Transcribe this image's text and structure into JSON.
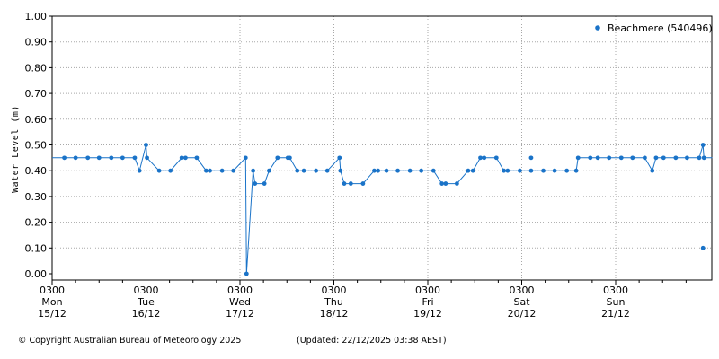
{
  "chart_data": {
    "type": "line",
    "title": "",
    "ylabel": "Water Level (m)",
    "xlabel": "",
    "ylim": [
      0,
      1.0
    ],
    "yticks": [
      "0.00",
      "0.10",
      "0.20",
      "0.30",
      "0.40",
      "0.50",
      "0.60",
      "0.70",
      "0.80",
      "0.90",
      "1.00"
    ],
    "xlim": [
      0,
      7.03
    ],
    "x_unit": "days since 0300 Mon 15/12",
    "xticks": [
      {
        "time": "0300",
        "day": "Mon",
        "date": "15/12"
      },
      {
        "time": "0300",
        "day": "Tue",
        "date": "16/12"
      },
      {
        "time": "0300",
        "day": "Wed",
        "date": "17/12"
      },
      {
        "time": "0300",
        "day": "Thu",
        "date": "18/12"
      },
      {
        "time": "0300",
        "day": "Fri",
        "date": "19/12"
      },
      {
        "time": "0300",
        "day": "Sat",
        "date": "20/12"
      },
      {
        "time": "0300",
        "day": "Sun",
        "date": "21/12"
      }
    ],
    "grid": true,
    "legend_position": "top-right",
    "series": [
      {
        "name": "Beachmere (540496)",
        "color": "#1a73c8",
        "points": [
          [
            0.0,
            0.45
          ],
          [
            0.13,
            0.45
          ],
          [
            0.25,
            0.45
          ],
          [
            0.38,
            0.45
          ],
          [
            0.5,
            0.45
          ],
          [
            0.63,
            0.45
          ],
          [
            0.75,
            0.45
          ],
          [
            0.88,
            0.45
          ],
          [
            0.93,
            0.4
          ],
          [
            1.0,
            0.5
          ],
          [
            1.01,
            0.45
          ],
          [
            1.14,
            0.4
          ],
          [
            1.26,
            0.4
          ],
          [
            1.38,
            0.45
          ],
          [
            1.42,
            0.45
          ],
          [
            1.54,
            0.45
          ],
          [
            1.64,
            0.4
          ],
          [
            1.68,
            0.4
          ],
          [
            1.81,
            0.4
          ],
          [
            1.93,
            0.4
          ],
          [
            2.06,
            0.45
          ],
          [
            2.07,
            0.0
          ],
          [
            2.14,
            0.4
          ],
          [
            2.16,
            0.35
          ],
          [
            2.26,
            0.35
          ],
          [
            2.31,
            0.4
          ],
          [
            2.4,
            0.45
          ],
          [
            2.51,
            0.45
          ],
          [
            2.53,
            0.45
          ],
          [
            2.61,
            0.4
          ],
          [
            2.68,
            0.4
          ],
          [
            2.81,
            0.4
          ],
          [
            2.93,
            0.4
          ],
          [
            3.06,
            0.45
          ],
          [
            3.07,
            0.4
          ],
          [
            3.11,
            0.35
          ],
          [
            3.18,
            0.35
          ],
          [
            3.31,
            0.35
          ],
          [
            3.43,
            0.4
          ],
          [
            3.47,
            0.4
          ],
          [
            3.56,
            0.4
          ],
          [
            3.68,
            0.4
          ],
          [
            3.81,
            0.4
          ],
          [
            3.93,
            0.4
          ],
          [
            4.06,
            0.4
          ],
          [
            4.15,
            0.35
          ],
          [
            4.19,
            0.35
          ],
          [
            4.31,
            0.35
          ],
          [
            4.43,
            0.4
          ],
          [
            4.48,
            0.4
          ],
          [
            4.56,
            0.45
          ],
          [
            4.6,
            0.45
          ],
          [
            4.73,
            0.45
          ],
          [
            4.81,
            0.4
          ],
          [
            4.85,
            0.4
          ],
          [
            4.98,
            0.4
          ],
          [
            5.1,
            0.4
          ],
          [
            5.23,
            0.4
          ],
          [
            5.35,
            0.4
          ],
          [
            5.48,
            0.4
          ],
          [
            5.58,
            0.4
          ],
          [
            5.6,
            0.45
          ],
          [
            5.73,
            0.45
          ],
          [
            5.81,
            0.45
          ],
          [
            5.93,
            0.45
          ],
          [
            6.06,
            0.45
          ],
          [
            6.18,
            0.45
          ],
          [
            6.31,
            0.45
          ],
          [
            6.39,
            0.4
          ],
          [
            6.43,
            0.45
          ],
          [
            6.51,
            0.45
          ],
          [
            6.64,
            0.45
          ],
          [
            6.76,
            0.45
          ],
          [
            6.89,
            0.45
          ],
          [
            6.93,
            0.5
          ],
          [
            6.94,
            0.45
          ],
          [
            7.03,
            0.45
          ]
        ],
        "isolated_points": [
          [
            5.1,
            0.45
          ],
          [
            6.93,
            0.1
          ]
        ]
      }
    ]
  },
  "footer": {
    "copyright": "© Copyright Australian Bureau of Meteorology 2025",
    "updated": "(Updated: 22/12/2025 03:38 AEST)"
  }
}
